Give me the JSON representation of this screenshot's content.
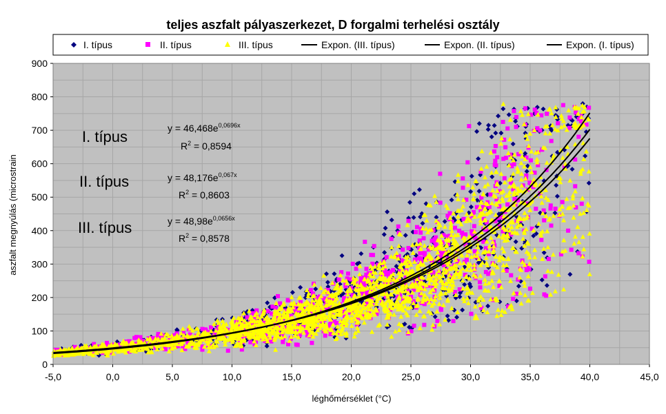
{
  "chart_data": {
    "type": "scatter",
    "title": "teljes aszfalt pályaszerkezet, D forgalmi terhelési osztály",
    "xlabel": "léghőmérséklet (°C)",
    "ylabel": "aszfalt megnyúlás (microstrain",
    "xlim": [
      -5,
      45
    ],
    "ylim": [
      0,
      900
    ],
    "x_ticks": [
      "-5,0",
      "0,0",
      "5,0",
      "10,0",
      "15,0",
      "20,0",
      "25,0",
      "30,0",
      "35,0",
      "40,0",
      "45,0"
    ],
    "y_ticks": [
      "0",
      "100",
      "200",
      "300",
      "400",
      "500",
      "600",
      "700",
      "800",
      "900"
    ],
    "grid": true,
    "plot_background": "#c0c0c0",
    "legend_position": "top",
    "series": [
      {
        "name": "I. típus",
        "marker": "diamond",
        "color": "#000080"
      },
      {
        "name": "II. típus",
        "marker": "square",
        "color": "#ff00ff"
      },
      {
        "name": "III. típus",
        "marker": "triangle",
        "color": "#ffff00"
      },
      {
        "name": "Expon. (III. típus)",
        "kind": "trendline",
        "a": 48.98,
        "b": 0.0656,
        "color": "#000000"
      },
      {
        "name": "Expon. (II. típus)",
        "kind": "trendline",
        "a": 48.176,
        "b": 0.067,
        "color": "#000000"
      },
      {
        "name": "Expon. (I. típus)",
        "kind": "trendline",
        "a": 46.468,
        "b": 0.0696,
        "color": "#000000"
      }
    ],
    "annotations": [
      {
        "label": "I. típus",
        "eq_prefix": "y = 46,468e",
        "eq_exp": "0,0696x",
        "r2_prefix": "R",
        "r2_sup": "2",
        "r2_value": " = 0,8594"
      },
      {
        "label": "II. típus",
        "eq_prefix": "y = 48,176e",
        "eq_exp": "0,067x",
        "r2_prefix": "R",
        "r2_sup": "2",
        "r2_value": " = 0,8603"
      },
      {
        "label": "III. típus",
        "eq_prefix": "y = 48,98e",
        "eq_exp": "0,0656x",
        "r2_prefix": "R",
        "r2_sup": "2",
        "r2_value": " = 0,8578"
      }
    ],
    "x_range": [
      -5,
      40
    ]
  }
}
